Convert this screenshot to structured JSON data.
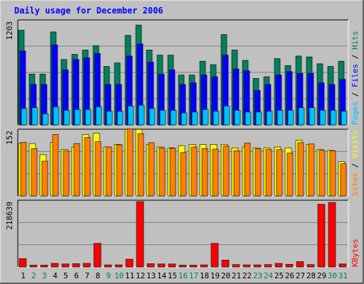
{
  "title": "Daily usage for December 2006",
  "colors": {
    "background": "#c0c0c0",
    "plot_background": "#c0c0c0",
    "grid": "#808080",
    "title": "#0000ff",
    "hits": "#00805c",
    "files": "#0000ff",
    "pages": "#00c0ff",
    "visits": "#ffff00",
    "sites": "#ff8000",
    "kbytes": "#ff0000",
    "weekend_label": "#00805c",
    "weekday_label": "#000000"
  },
  "chart_data": [
    {
      "type": "bar",
      "panel": "hits-files-pages",
      "ymax_label": "1203",
      "ymax": 1203,
      "ylabel_parts": [
        {
          "text": "Pages",
          "color": "#00c0ff"
        },
        {
          "text": " / ",
          "color": "#000000"
        },
        {
          "text": "Files",
          "color": "#0000ff"
        },
        {
          "text": " / ",
          "color": "#000000"
        },
        {
          "text": "Hits",
          "color": "#00805c"
        }
      ],
      "categories": [
        "1",
        "2",
        "3",
        "4",
        "5",
        "6",
        "7",
        "8",
        "9",
        "10",
        "11",
        "12",
        "13",
        "14",
        "15",
        "16",
        "17",
        "18",
        "19",
        "20",
        "21",
        "22",
        "23",
        "24",
        "25",
        "26",
        "27",
        "28",
        "29",
        "30",
        "31"
      ],
      "series": [
        {
          "name": "Hits",
          "values": [
            1100,
            590,
            590,
            1080,
            760,
            820,
            870,
            920,
            680,
            720,
            1040,
            1160,
            870,
            810,
            810,
            580,
            580,
            740,
            700,
            1050,
            870,
            750,
            540,
            560,
            770,
            690,
            800,
            790,
            710,
            680,
            740
          ]
        },
        {
          "name": "Files",
          "values": [
            860,
            470,
            470,
            930,
            640,
            760,
            780,
            830,
            470,
            470,
            800,
            940,
            730,
            590,
            640,
            470,
            490,
            580,
            560,
            810,
            650,
            630,
            400,
            470,
            580,
            620,
            600,
            600,
            490,
            470,
            530
          ]
        },
        {
          "name": "Pages",
          "values": [
            190,
            200,
            130,
            210,
            170,
            180,
            180,
            210,
            160,
            160,
            220,
            230,
            190,
            170,
            170,
            140,
            150,
            180,
            160,
            220,
            170,
            150,
            150,
            160,
            170,
            170,
            200,
            200,
            170,
            170,
            160
          ]
        }
      ]
    },
    {
      "type": "bar",
      "panel": "visits-sites",
      "ymax_label": "152",
      "ymax": 152,
      "ylabel_parts": [
        {
          "text": "Sites",
          "color": "#ff8000"
        },
        {
          "text": " / ",
          "color": "#000000"
        },
        {
          "text": "Visits",
          "color": "#ffff00"
        }
      ],
      "categories": [
        "1",
        "2",
        "3",
        "4",
        "5",
        "6",
        "7",
        "8",
        "9",
        "10",
        "11",
        "12",
        "13",
        "14",
        "15",
        "16",
        "17",
        "18",
        "19",
        "20",
        "21",
        "22",
        "23",
        "24",
        "25",
        "26",
        "27",
        "28",
        "29",
        "30",
        "31"
      ],
      "series": [
        {
          "name": "Visits",
          "values": [
            122,
            122,
            96,
            125,
            108,
            114,
            143,
            146,
            114,
            120,
            155,
            155,
            120,
            114,
            112,
            117,
            120,
            120,
            120,
            120,
            112,
            114,
            112,
            112,
            114,
            112,
            130,
            120,
            108,
            106,
            80
          ]
        },
        {
          "name": "Sites",
          "values": [
            125,
            110,
            81,
            143,
            105,
            122,
            136,
            126,
            114,
            119,
            156,
            145,
            124,
            112,
            111,
            101,
            114,
            110,
            109,
            116,
            105,
            123,
            110,
            108,
            108,
            100,
            124,
            121,
            106,
            105,
            75
          ]
        }
      ]
    },
    {
      "type": "bar",
      "panel": "kbytes",
      "ymax_label": "218639",
      "ymax": 218639,
      "ylabel_parts": [
        {
          "text": "KBytes",
          "color": "#ff0000"
        }
      ],
      "categories": [
        "1",
        "2",
        "3",
        "4",
        "5",
        "6",
        "7",
        "8",
        "9",
        "10",
        "11",
        "12",
        "13",
        "14",
        "15",
        "16",
        "17",
        "18",
        "19",
        "20",
        "21",
        "22",
        "23",
        "24",
        "25",
        "26",
        "27",
        "28",
        "29",
        "30",
        "31"
      ],
      "series": [
        {
          "name": "KBytes",
          "values": [
            28000,
            6000,
            6000,
            12000,
            10000,
            11000,
            12000,
            79000,
            7000,
            7000,
            26000,
            218639,
            11000,
            10000,
            10000,
            6000,
            6000,
            7000,
            79000,
            23000,
            8000,
            7000,
            7000,
            8000,
            12000,
            9000,
            18000,
            8000,
            210000,
            216000,
            10000
          ]
        }
      ]
    }
  ],
  "weekend_days": [
    "2",
    "3",
    "9",
    "10",
    "16",
    "17",
    "23",
    "24",
    "30",
    "31"
  ]
}
